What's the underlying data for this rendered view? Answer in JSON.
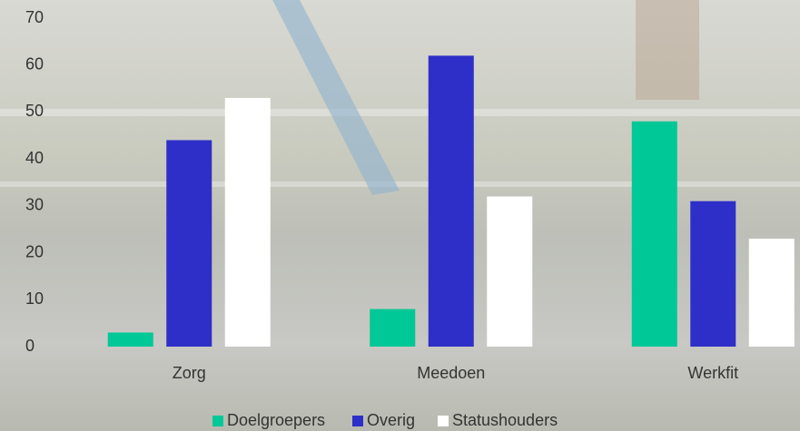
{
  "chart_data": {
    "type": "bar",
    "categories": [
      "Zorg",
      "Meedoen",
      "Werkfit"
    ],
    "series": [
      {
        "name": "Doelgroepers",
        "color": "#00c896",
        "values": [
          3,
          8,
          48
        ]
      },
      {
        "name": "Overig",
        "color": "#2e2ec8",
        "values": [
          44,
          62,
          31
        ]
      },
      {
        "name": "Statushouders",
        "color": "#ffffff",
        "values": [
          53,
          32,
          23
        ]
      }
    ],
    "ylim": [
      0,
      70
    ],
    "yticks": [
      0,
      10,
      20,
      30,
      40,
      50,
      60,
      70
    ],
    "grid": false,
    "legend": "bottom"
  }
}
